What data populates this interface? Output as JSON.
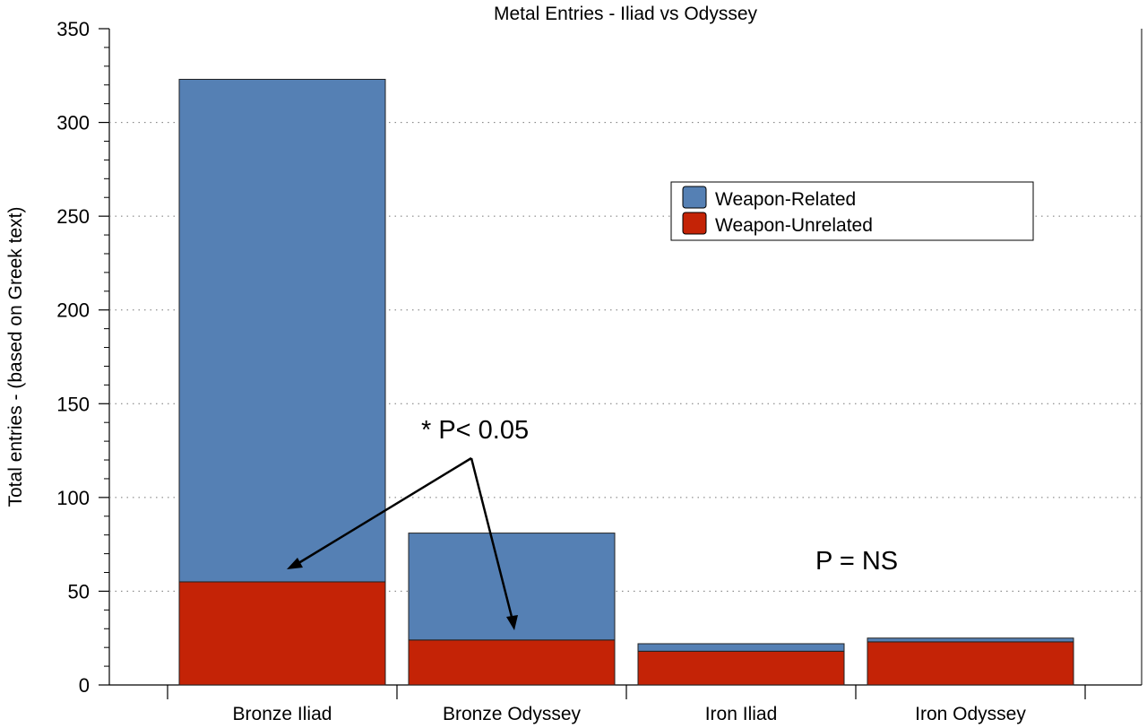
{
  "chart_data": {
    "type": "bar",
    "stacked": true,
    "title": "Metal Entries - Iliad vs Odyssey",
    "xlabel": "",
    "ylabel": "Total entries  -  (based on Greek text)",
    "ylim": [
      0,
      350
    ],
    "yticks": [
      "0",
      "50",
      "100",
      "150",
      "200",
      "250",
      "300",
      "350"
    ],
    "ytick_values": [
      0,
      50,
      100,
      150,
      200,
      250,
      300,
      350
    ],
    "grid": true,
    "categories": [
      "Bronze Iliad",
      "Bronze Odyssey",
      "Iron Iliad",
      "Iron Odyssey"
    ],
    "series": [
      {
        "name": "Weapon-Unrelated",
        "color": "#c42306",
        "values": [
          55,
          24,
          18,
          23
        ]
      },
      {
        "name": "Weapon-Related",
        "color": "#5580b4",
        "values": [
          268,
          57,
          4,
          2
        ]
      }
    ],
    "legend": {
      "position": "top-right",
      "entries": [
        "Weapon-Related",
        "Weapon-Unrelated"
      ]
    },
    "annotations": {
      "significant": "* P< 0.05",
      "not_significant": "P = NS"
    }
  }
}
